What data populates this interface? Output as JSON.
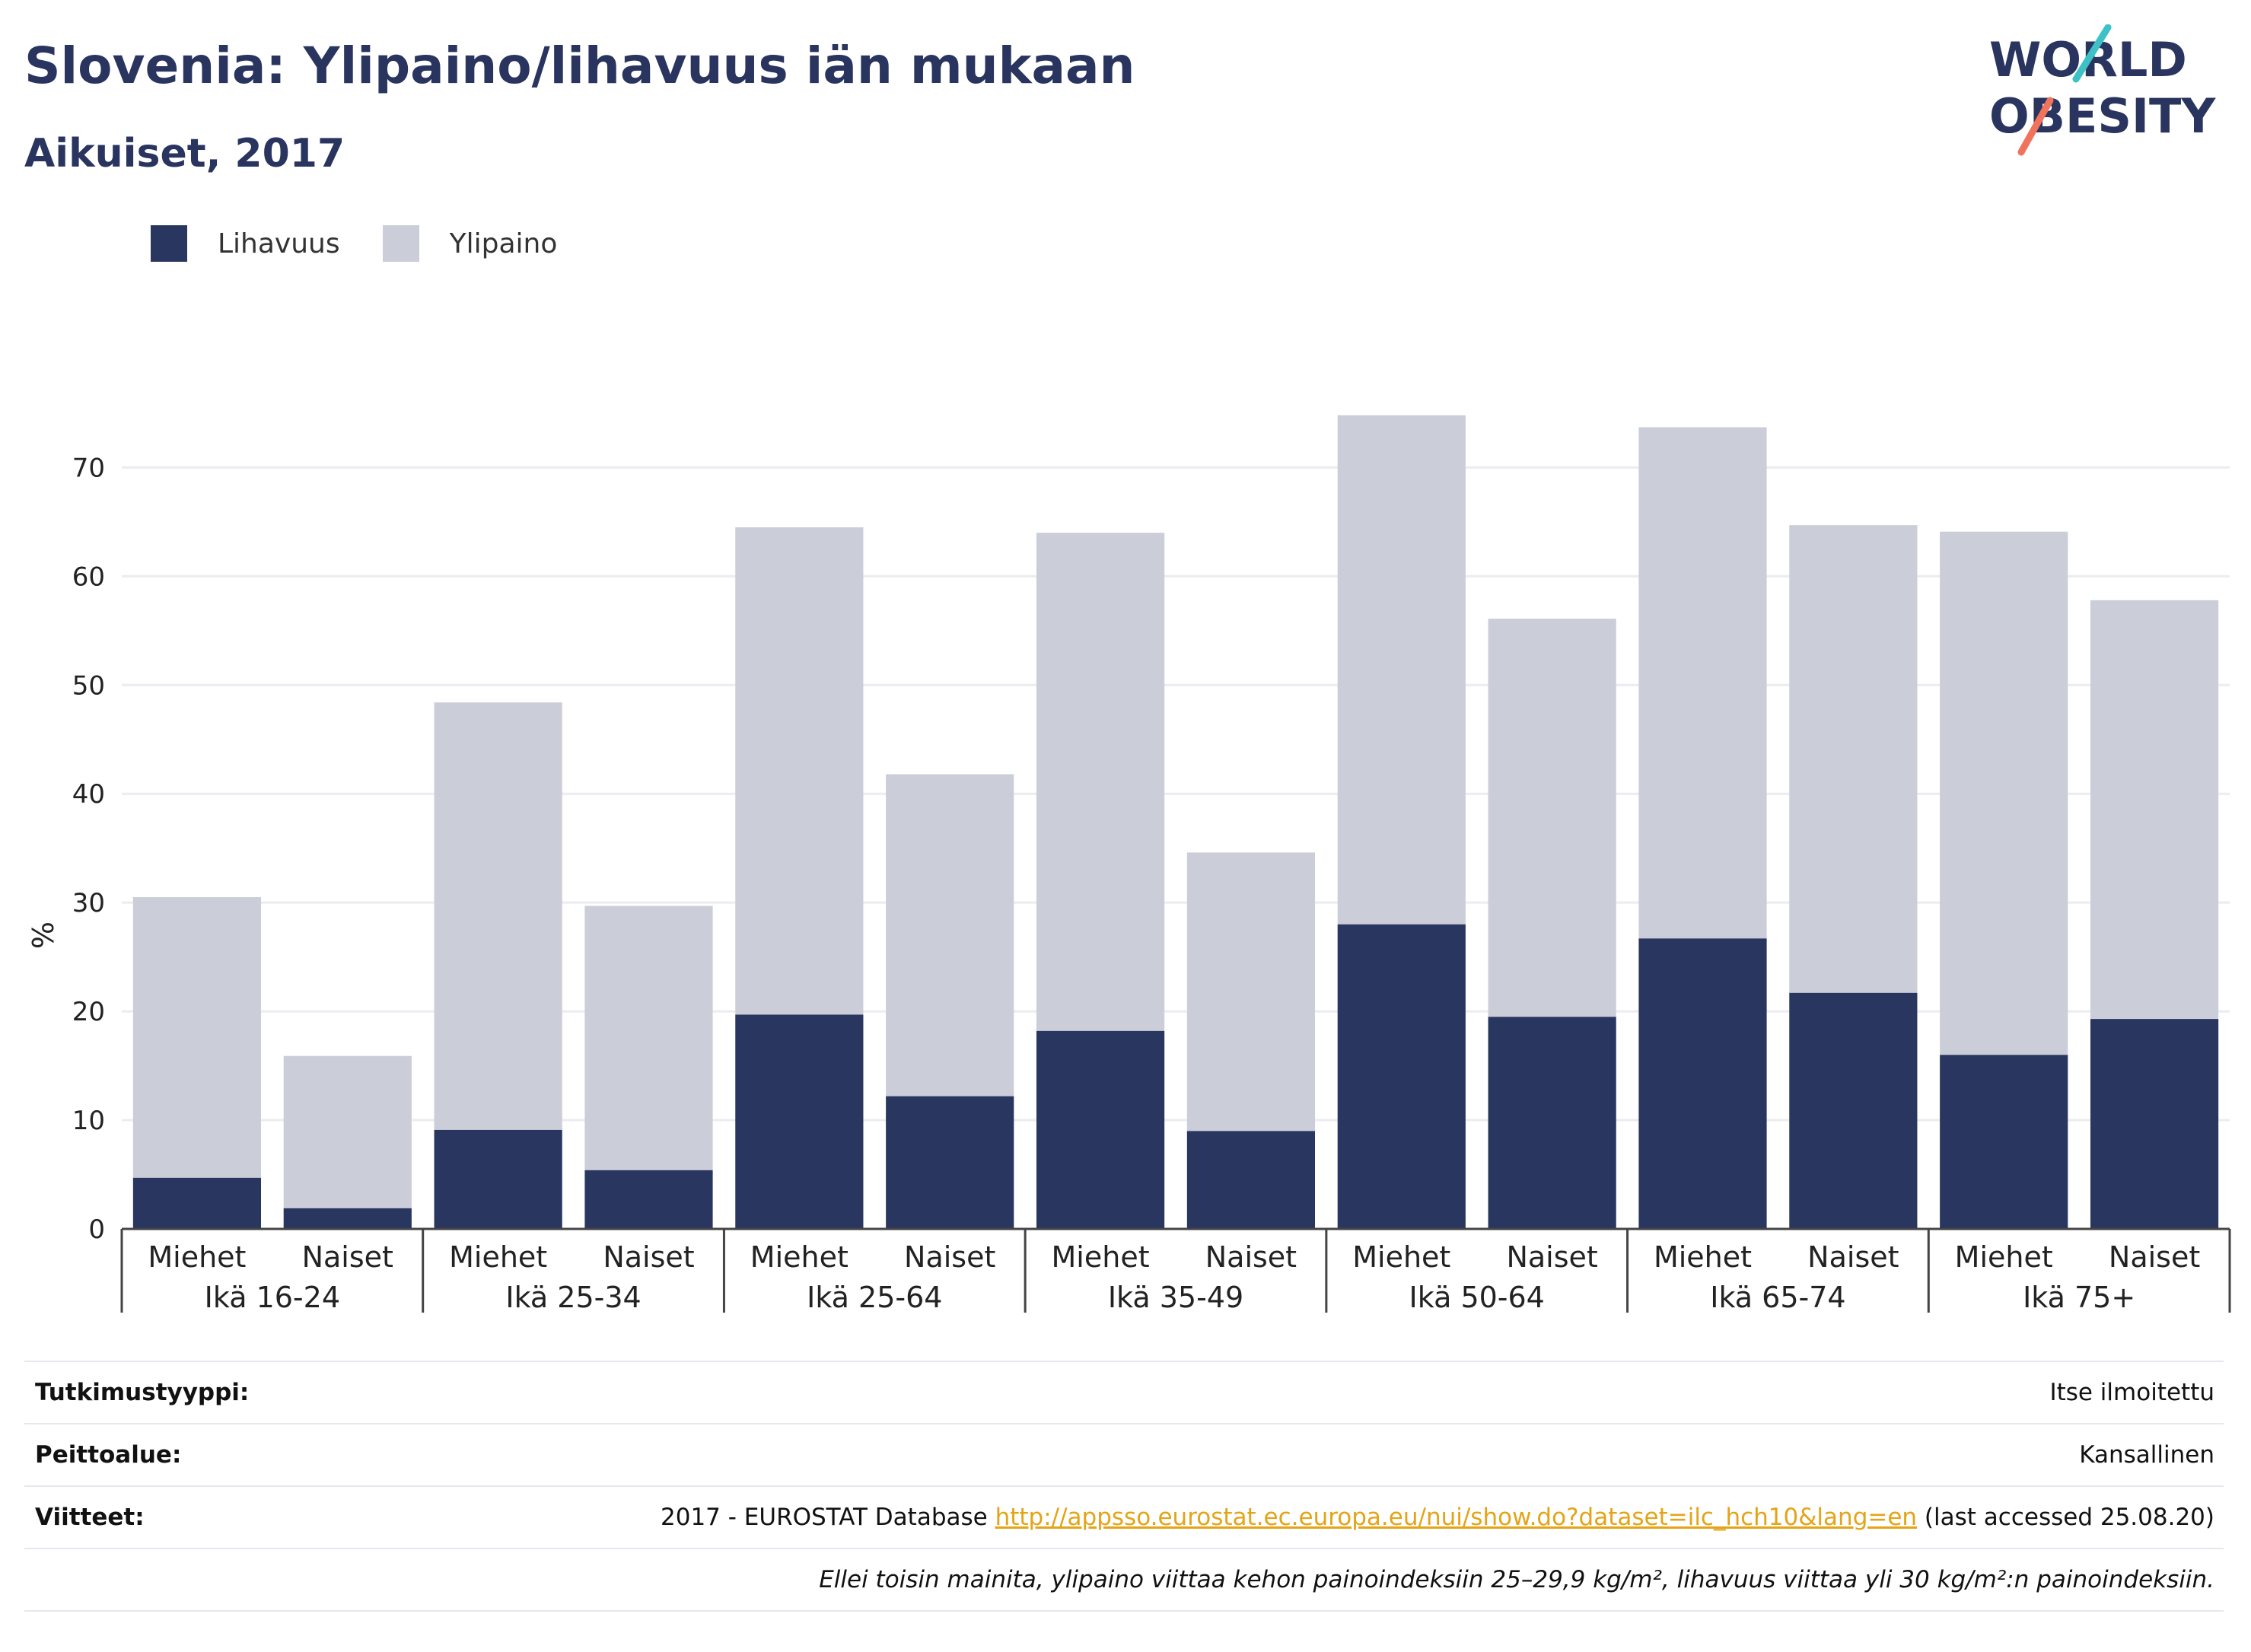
{
  "title": "Slovenia: Ylipaino/lihavuus iän mukaan",
  "subtitle": "Aikuiset, 2017",
  "logo": {
    "line1": "WORLD",
    "line2": "OBESITY",
    "accent_teal": "#3ec1c6",
    "accent_coral": "#f0735c"
  },
  "colors": {
    "obesity": "#29365f",
    "overweight": "#cbcdd8",
    "text": "#29345f",
    "grid": "#ececf1",
    "link": "#e3a417"
  },
  "legend": [
    {
      "label": "Lihavuus",
      "color": "#29365f"
    },
    {
      "label": "Ylipaino",
      "color": "#cbcdd8"
    }
  ],
  "chart_data": {
    "type": "bar",
    "stacked": true,
    "ylabel": "%",
    "xlabel": "",
    "ylim": [
      0,
      78
    ],
    "yticks": [
      0,
      10,
      20,
      30,
      40,
      50,
      60,
      70
    ],
    "grid": true,
    "legend_position": "top-left",
    "groups": [
      "Ikä 16-24",
      "Ikä 25-34",
      "Ikä 25-64",
      "Ikä 35-49",
      "Ikä 50-64",
      "Ikä 65-74",
      "Ikä 75+"
    ],
    "categories": [
      "Miehet",
      "Naiset",
      "Miehet",
      "Naiset",
      "Miehet",
      "Naiset",
      "Miehet",
      "Naiset",
      "Miehet",
      "Naiset",
      "Miehet",
      "Naiset",
      "Miehet",
      "Naiset"
    ],
    "series": [
      {
        "name": "Lihavuus",
        "values": [
          4.7,
          1.9,
          9.1,
          5.4,
          19.7,
          12.2,
          18.2,
          9.0,
          28.0,
          19.5,
          26.7,
          21.7,
          16.0,
          19.3
        ]
      },
      {
        "name": "Ylipaino",
        "values": [
          25.8,
          14.0,
          39.3,
          24.3,
          44.8,
          29.6,
          45.8,
          25.6,
          46.8,
          36.6,
          47.0,
          43.0,
          48.1,
          38.5
        ]
      }
    ]
  },
  "info": {
    "study_type_label": "Tutkimustyyppi:",
    "study_type_value": "Itse ilmoitettu",
    "coverage_label": "Peittoalue:",
    "coverage_value": "Kansallinen",
    "refs_label": "Viitteet:",
    "refs_prefix": "2017 - EUROSTAT Database",
    "refs_link": "http://appsso.eurostat.ec.europa.eu/nui/show.do?dataset=ilc_hch10&lang=en",
    "refs_suffix": "(last accessed 25.08.20)",
    "note": "Ellei toisin mainita, ylipaino viittaa kehon painoindeksiin 25–29,9 kg/m², lihavuus viittaa yli 30 kg/m²:n painoindeksiin."
  }
}
